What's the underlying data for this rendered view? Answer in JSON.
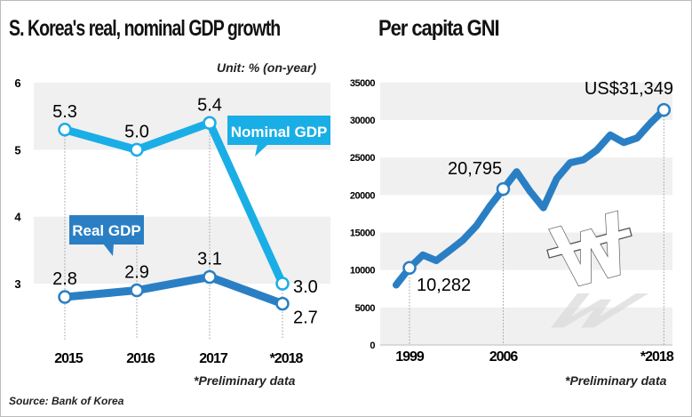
{
  "chart_data": [
    {
      "type": "line",
      "title": "S. Korea's real, nominal GDP growth",
      "unit": "Unit: % (on-year)",
      "categories": [
        "2015",
        "2016",
        "2017",
        "*2018"
      ],
      "ylim": [
        2,
        6
      ],
      "yticks": [
        3,
        4,
        5,
        6
      ],
      "grid": "alternating bands",
      "series": [
        {
          "name": "Nominal GDP",
          "values": [
            5.3,
            5.0,
            5.4,
            3.0
          ],
          "labels": [
            "5.3",
            "5.0",
            "5.4",
            "3.0"
          ],
          "color": "#1aaee6"
        },
        {
          "name": "Real GDP",
          "values": [
            2.8,
            2.9,
            3.1,
            2.7
          ],
          "labels": [
            "2.8",
            "2.9",
            "3.1",
            "2.7"
          ],
          "color": "#2a7fc4"
        }
      ],
      "note": "*Preliminary data"
    },
    {
      "type": "line",
      "title": "Per capita GNI",
      "x": [
        1998,
        1999,
        2000,
        2001,
        2002,
        2003,
        2004,
        2005,
        2006,
        2007,
        2008,
        2009,
        2010,
        2011,
        2012,
        2013,
        2014,
        2015,
        2016,
        2017,
        2018
      ],
      "xticks": [
        "1999",
        "2006",
        "*2018"
      ],
      "ylim": [
        0,
        35000
      ],
      "yticks": [
        0,
        5000,
        10000,
        15000,
        20000,
        25000,
        30000,
        35000
      ],
      "grid": "alternating bands",
      "series": [
        {
          "values": [
            8000,
            10282,
            12000,
            11250,
            12600,
            14000,
            15900,
            18500,
            20795,
            23100,
            20500,
            18300,
            22200,
            24300,
            24700,
            26000,
            28000,
            27000,
            27600,
            29600,
            31349
          ],
          "color": "#2a7fc4"
        }
      ],
      "annotations": [
        {
          "x": 1999,
          "label": "10,282"
        },
        {
          "x": 2006,
          "label": "20,795"
        },
        {
          "x": 2018,
          "label": "US$31,349"
        }
      ],
      "note": "*Preliminary data"
    }
  ],
  "source": "Source: Bank of Korea",
  "won_symbol": "₩"
}
